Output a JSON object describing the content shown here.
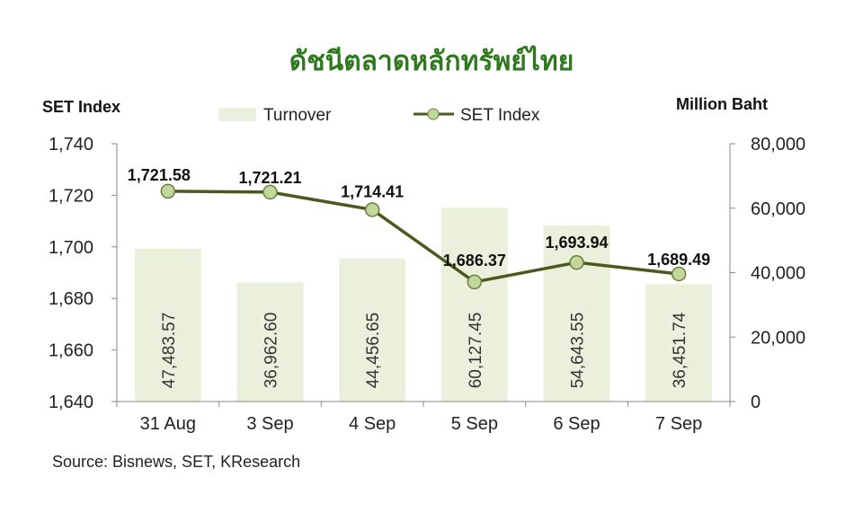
{
  "chart_data": {
    "type": "bar+line",
    "title": "ดัชนีตลาดหลักทรัพย์ไทย",
    "ylabel_left": "SET Index",
    "ylabel_right": "Million Baht",
    "categories": [
      "31 Aug",
      "3 Sep",
      "4 Sep",
      "5 Sep",
      "6 Sep",
      "7 Sep"
    ],
    "series": [
      {
        "name": "Turnover",
        "type": "bar",
        "axis": "right",
        "values": [
          47483.57,
          36962.6,
          44456.65,
          60127.45,
          54643.55,
          36451.74
        ],
        "labels": [
          "47,483.57",
          "36,962.60",
          "44,456.65",
          "60,127.45",
          "54,643.55",
          "36,451.74"
        ]
      },
      {
        "name": "SET Index",
        "type": "line",
        "axis": "left",
        "values": [
          1721.58,
          1721.21,
          1714.41,
          1686.37,
          1693.94,
          1689.49
        ],
        "labels": [
          "1,721.58",
          "1,721.21",
          "1,714.41",
          "1,686.37",
          "1,693.94",
          "1,689.49"
        ]
      }
    ],
    "ylim_left": [
      1640,
      1740
    ],
    "ylim_right": [
      0,
      80000
    ],
    "yticks_left": [
      "1,640",
      "1,660",
      "1,680",
      "1,700",
      "1,720",
      "1,740"
    ],
    "yticks_right": [
      "0",
      "20,000",
      "40,000",
      "60,000",
      "80,000"
    ],
    "legend_position": "top",
    "grid": false,
    "source": "Source: Bisnews, SET, KResearch",
    "colors": {
      "title": "#2f7a1f",
      "bar": "#ebf0dc",
      "line": "#4a5a1e",
      "marker_fill": "#c3d69b",
      "marker_edge": "#6b7f3a",
      "axis": "#888888"
    }
  }
}
